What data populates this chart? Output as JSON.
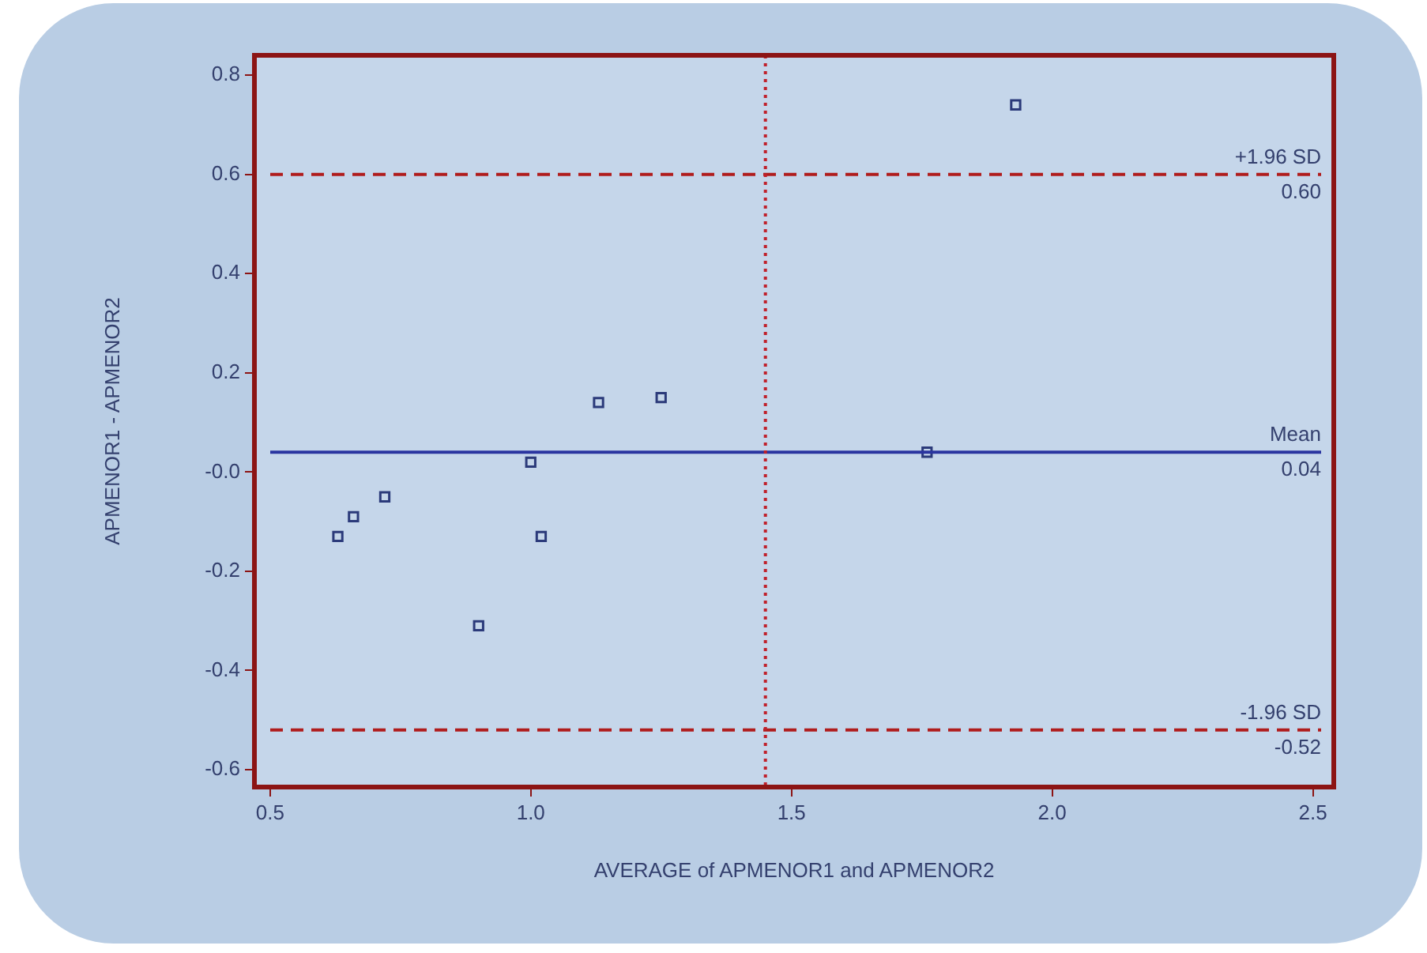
{
  "chart_data": {
    "type": "scatter",
    "xlabel": "AVERAGE of APMENOR1 and APMENOR2",
    "ylabel": "APMENOR1 - APMENOR2",
    "x": [
      0.63,
      0.66,
      0.72,
      0.9,
      1.0,
      1.02,
      1.13,
      1.25,
      1.76,
      1.93
    ],
    "series": [
      {
        "color": "#2b3a7a",
        "values": [
          -0.13,
          -0.09,
          -0.05,
          -0.31,
          0.02,
          -0.13,
          0.14,
          0.15,
          0.04,
          0.74
        ]
      }
    ],
    "marker": "square",
    "xlim": [
      0.47,
      2.54
    ],
    "ylim": [
      -0.635,
      0.84
    ],
    "xticks": [
      {
        "value": 0.5,
        "label": "0.5"
      },
      {
        "value": 1,
        "label": "1.0"
      },
      {
        "value": 1.5,
        "label": "1.5"
      },
      {
        "value": 2,
        "label": "2.0"
      },
      {
        "value": 2.5,
        "label": "2.5"
      }
    ],
    "yticks": [
      -0.6,
      -0.4,
      -0.2,
      {
        "value": 0,
        "label": "-0.0"
      },
      0.2,
      0.4,
      0.6,
      0.8
    ],
    "ref_lines": [
      {
        "axis": "y",
        "value": 0.6,
        "label": "+1.96 SD",
        "color": "#b01c1c",
        "line_style": "dashed"
      },
      {
        "axis": "y",
        "value": 0.04,
        "label": "Mean",
        "color": "#2a35a0",
        "line_style": "solid"
      },
      {
        "axis": "y",
        "value": -0.52,
        "label": "-1.96 SD",
        "color": "#b01c1c",
        "line_style": "dashed"
      },
      {
        "axis": "x",
        "value": 1.45,
        "color": "#c0202a",
        "line_style": "dotted"
      }
    ],
    "annotations": [
      {
        "text": "0.60",
        "y": 0.6
      },
      {
        "text": "0.04",
        "y": 0.04
      },
      {
        "text": "-0.52",
        "y": -0.52
      }
    ],
    "grid": false,
    "legend": false
  }
}
